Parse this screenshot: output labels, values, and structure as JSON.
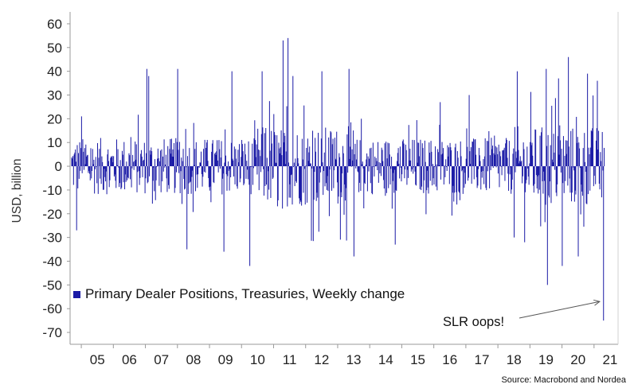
{
  "chart_data": {
    "type": "bar",
    "title": "",
    "ylabel": "USD, billion",
    "xlabel": "",
    "ylim": [
      -75,
      65
    ],
    "yticks": [
      60,
      50,
      40,
      30,
      20,
      10,
      0,
      -10,
      -20,
      -30,
      -40,
      -50,
      -60,
      -70
    ],
    "xlim": [
      2004.65,
      2021.75
    ],
    "xtick_labels": [
      "05",
      "06",
      "07",
      "08",
      "09",
      "10",
      "11",
      "12",
      "13",
      "14",
      "15",
      "16",
      "17",
      "18",
      "19",
      "20",
      "21"
    ],
    "legend": {
      "label": "Primary Dealer Positions, Treasuries, Weekly change",
      "placement": "bottom-left"
    },
    "annotation": {
      "text": "SLR oops!",
      "target_x": 2021.3,
      "target_y": -65
    },
    "source": "Source: Macrobond and Nordea",
    "grid": false,
    "series": [
      {
        "name": "Primary Dealer Positions, Treasuries, Weekly change",
        "color": "#1a1aa6",
        "weeks_per_year": 52,
        "start_year": 2004.7,
        "highlights": [
          {
            "x": 2007.05,
            "y": 41
          },
          {
            "x": 2007.1,
            "y": 38
          },
          {
            "x": 2008.0,
            "y": 41
          },
          {
            "x": 2009.7,
            "y": 40
          },
          {
            "x": 2010.25,
            "y": -42
          },
          {
            "x": 2010.65,
            "y": 40
          },
          {
            "x": 2011.3,
            "y": 53
          },
          {
            "x": 2011.45,
            "y": 54
          },
          {
            "x": 2011.6,
            "y": 38
          },
          {
            "x": 2012.5,
            "y": 40
          },
          {
            "x": 2013.35,
            "y": 41
          },
          {
            "x": 2013.5,
            "y": -38
          },
          {
            "x": 2018.6,
            "y": 40
          },
          {
            "x": 2019.5,
            "y": 41
          },
          {
            "x": 2019.55,
            "y": -50
          },
          {
            "x": 2019.9,
            "y": 37
          },
          {
            "x": 2020.0,
            "y": -42
          },
          {
            "x": 2020.2,
            "y": 46
          },
          {
            "x": 2020.5,
            "y": -38
          },
          {
            "x": 2020.8,
            "y": 39
          },
          {
            "x": 2021.1,
            "y": 36
          },
          {
            "x": 2021.3,
            "y": -65
          },
          {
            "x": 2004.85,
            "y": -27
          },
          {
            "x": 2005.0,
            "y": 21
          },
          {
            "x": 2008.3,
            "y": -35
          },
          {
            "x": 2009.45,
            "y": -36
          },
          {
            "x": 2014.8,
            "y": -33
          },
          {
            "x": 2016.2,
            "y": 27
          },
          {
            "x": 2017.1,
            "y": 30
          },
          {
            "x": 2018.5,
            "y": -30
          }
        ]
      }
    ]
  }
}
